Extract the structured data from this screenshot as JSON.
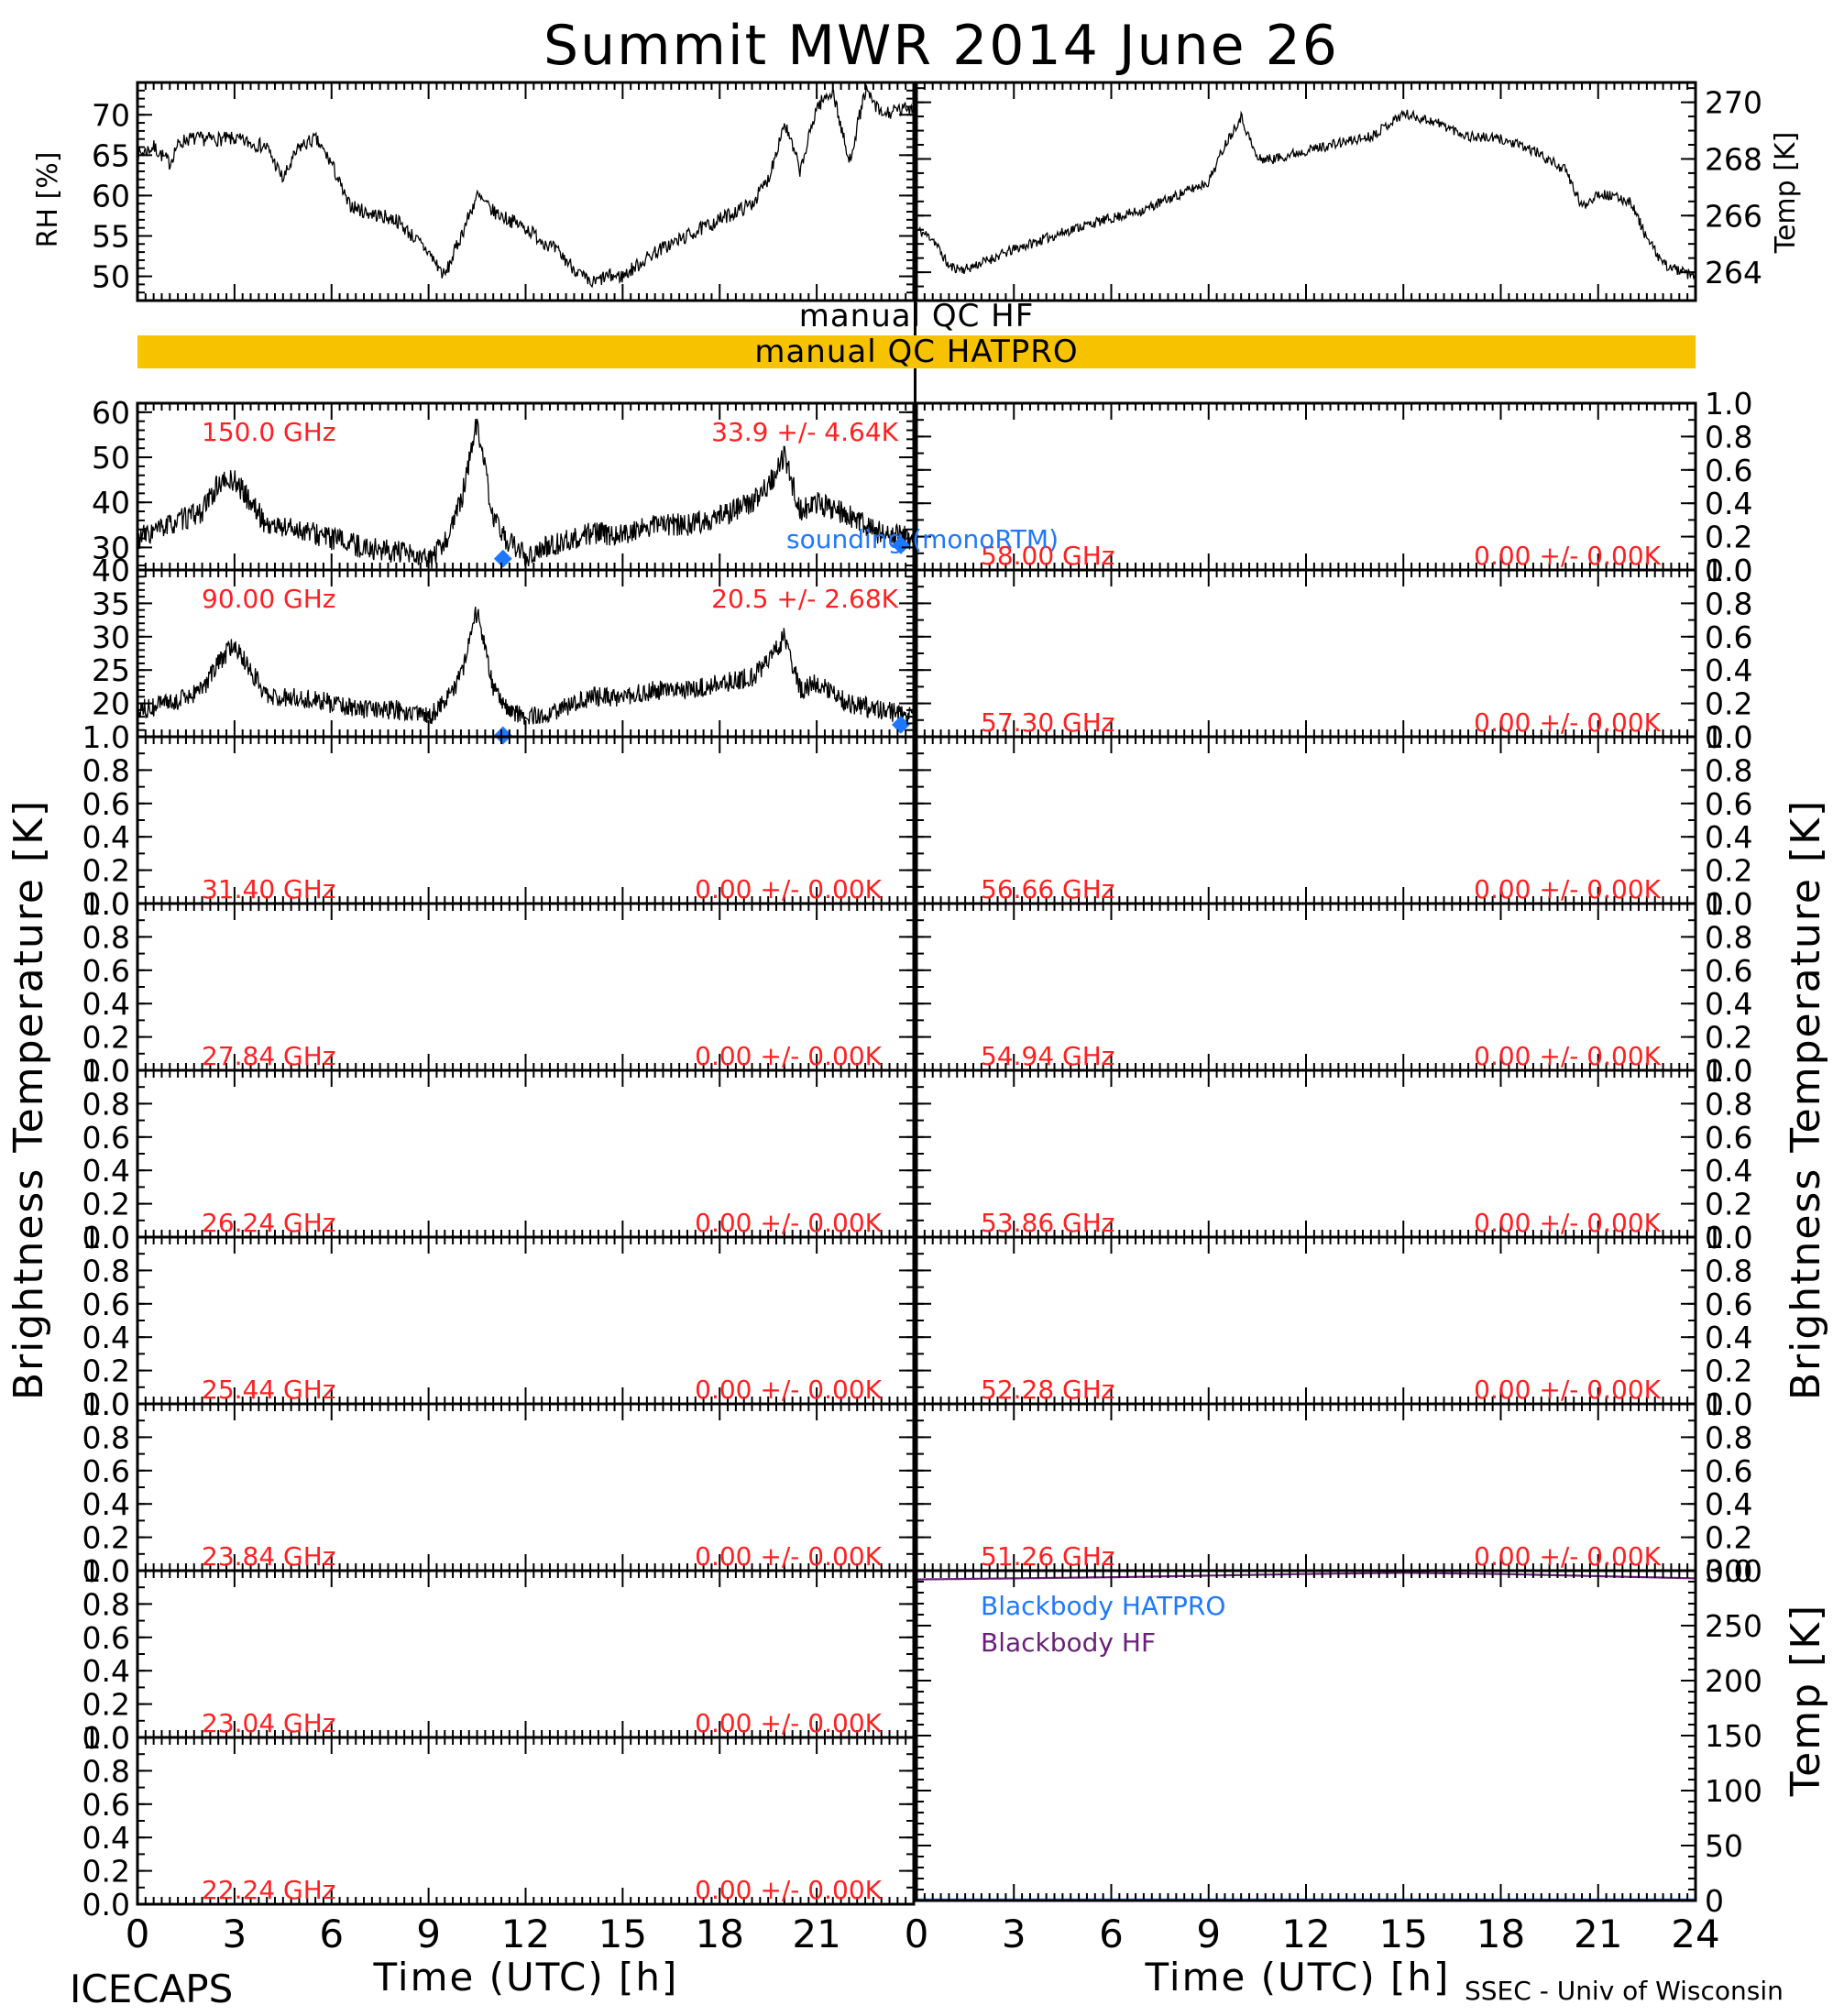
{
  "title": "Summit MWR 2014 June 26",
  "footer": {
    "left": "ICECAPS",
    "right": "SSEC - Univ of Wisconsin"
  },
  "axes_text": {
    "time_label": "Time (UTC) [h]",
    "left_tb_label": "Brightness Temperature [K]",
    "right_tb_label": "Brightness Temperature [K]",
    "rh_label": "RH [%]",
    "met_temp_label": "Temp [K]",
    "bb_temp_label": "Temp [K]"
  },
  "qc": {
    "hf_label": "manual QC HF",
    "hatpro_label": "manual QC HATPRO",
    "hatpro_flag_color": "#f7c300"
  },
  "colors": {
    "frame": "#000000",
    "label_red": "#ff2020",
    "sounding_blue": "#1e78ff",
    "bb_purple": "#6a1f7a"
  },
  "chart_data": [
    {
      "id": "rh",
      "type": "line",
      "ylabel": "RH [%]",
      "xlim": [
        0,
        24
      ],
      "ylim": [
        47,
        74
      ],
      "yticks": [
        50,
        55,
        60,
        65,
        70
      ],
      "x": [
        0,
        0.5,
        1,
        1.2,
        1.5,
        2,
        3,
        4,
        4.5,
        5,
        5.5,
        6,
        6.5,
        7,
        8,
        8.5,
        9,
        9.5,
        10,
        10.5,
        11,
        12,
        13,
        13.5,
        14,
        14.5,
        15,
        16,
        17,
        18,
        19,
        19.5,
        20,
        20.5,
        21,
        21.5,
        22,
        22.5,
        23,
        24
      ],
      "y": [
        65,
        66,
        64,
        66,
        67,
        67,
        67,
        66,
        62,
        66,
        67,
        64,
        59,
        58,
        57,
        55,
        53,
        50,
        55,
        60,
        58,
        56,
        53,
        51,
        49,
        50,
        50,
        53,
        55,
        57,
        59,
        62,
        69,
        63,
        71,
        73,
        64,
        73,
        70,
        71
      ]
    },
    {
      "id": "met_temp",
      "type": "line",
      "ylabel": "Temp [K]",
      "xlim": [
        0,
        24
      ],
      "ylim": [
        263.0,
        270.7
      ],
      "yticks": [
        264,
        266,
        268,
        270
      ],
      "x": [
        0,
        0.5,
        1,
        1.5,
        3,
        5,
        7,
        9,
        9.5,
        10,
        10.5,
        11,
        12,
        14,
        15,
        16,
        17,
        18,
        19,
        20,
        20.5,
        21,
        22,
        22.5,
        23,
        24
      ],
      "y": [
        265.5,
        265.2,
        264.2,
        264.1,
        264.8,
        265.6,
        266.2,
        267.2,
        268.5,
        269.5,
        268.0,
        268.0,
        268.3,
        268.8,
        269.6,
        269.3,
        268.8,
        268.7,
        268.3,
        267.6,
        266.3,
        266.8,
        266.5,
        265.2,
        264.3,
        263.8
      ]
    },
    {
      "id": "tb_150",
      "type": "line",
      "freq_label": "150.0 GHz",
      "stat_label": "33.9 +/- 4.64K",
      "ylim": [
        25,
        62
      ],
      "yticks": [
        30,
        40,
        50,
        60
      ],
      "x": [
        0,
        1,
        2,
        2.5,
        3,
        3.5,
        4,
        5,
        6,
        7,
        8,
        9,
        9.5,
        10,
        10.5,
        11,
        11.5,
        12,
        13,
        14,
        15,
        16,
        17,
        18,
        19,
        19.5,
        20,
        20.5,
        21,
        22,
        23,
        24
      ],
      "y": [
        32,
        35,
        38,
        44,
        45,
        40,
        35,
        34,
        32,
        30,
        29,
        27,
        31,
        40,
        58,
        36,
        31,
        28,
        31,
        33,
        33,
        35,
        35,
        37,
        40,
        44,
        50,
        38,
        40,
        37,
        33,
        32
      ],
      "sounding": {
        "label": "sounding (monoRTM)",
        "x": [
          11.3,
          23.6
        ],
        "y": [
          27.5,
          30.5
        ]
      }
    },
    {
      "id": "tb_90",
      "type": "line",
      "freq_label": "90.00 GHz",
      "stat_label": "20.5 +/- 2.68K",
      "ylim": [
        15,
        40
      ],
      "yticks": [
        20,
        25,
        30,
        35,
        40
      ],
      "x": [
        0,
        1,
        2,
        2.5,
        3,
        3.5,
        4,
        5,
        6,
        7,
        8,
        9,
        9.5,
        10,
        10.5,
        11,
        11.5,
        12,
        13,
        14,
        15,
        16,
        17,
        18,
        19,
        19.5,
        20,
        20.5,
        21,
        22,
        23,
        24
      ],
      "y": [
        19,
        20,
        22,
        26,
        29,
        25,
        21,
        21,
        20,
        19,
        19,
        18,
        20,
        24,
        34,
        22,
        19,
        18,
        19,
        21,
        21,
        22,
        22,
        23,
        24,
        26,
        30,
        22,
        23,
        20,
        19,
        18
      ],
      "sounding": {
        "x": [
          11.3,
          23.6
        ],
        "y": [
          15.2,
          16.8
        ]
      }
    },
    {
      "id": "tb_left_31.40",
      "type": "line",
      "freq_label": "31.40 GHz",
      "stat_label": "0.00 +/- 0.00K",
      "ylim": [
        0,
        1
      ],
      "x": [],
      "y": []
    },
    {
      "id": "tb_left_27.84",
      "type": "line",
      "freq_label": "27.84 GHz",
      "stat_label": "0.00 +/- 0.00K",
      "ylim": [
        0,
        1
      ],
      "x": [],
      "y": []
    },
    {
      "id": "tb_left_26.24",
      "type": "line",
      "freq_label": "26.24 GHz",
      "stat_label": "0.00 +/- 0.00K",
      "ylim": [
        0,
        1
      ],
      "x": [],
      "y": []
    },
    {
      "id": "tb_left_25.44",
      "type": "line",
      "freq_label": "25.44 GHz",
      "stat_label": "0.00 +/- 0.00K",
      "ylim": [
        0,
        1
      ],
      "x": [],
      "y": []
    },
    {
      "id": "tb_left_23.84",
      "type": "line",
      "freq_label": "23.84 GHz",
      "stat_label": "0.00 +/- 0.00K",
      "ylim": [
        0,
        1
      ],
      "x": [],
      "y": []
    },
    {
      "id": "tb_left_23.04",
      "type": "line",
      "freq_label": "23.04 GHz",
      "stat_label": "0.00 +/- 0.00K",
      "ylim": [
        0,
        1
      ],
      "x": [],
      "y": []
    },
    {
      "id": "tb_left_22.24",
      "type": "line",
      "freq_label": "22.24 GHz",
      "stat_label": "0.00 +/- 0.00K",
      "ylim": [
        0,
        1
      ],
      "x": [],
      "y": []
    },
    {
      "id": "tb_right_58.00",
      "type": "line",
      "freq_label": "58.00 GHz",
      "stat_label": "0.00 +/- 0.00K",
      "ylim": [
        0,
        1
      ],
      "x": [],
      "y": []
    },
    {
      "id": "tb_right_57.30",
      "type": "line",
      "freq_label": "57.30 GHz",
      "stat_label": "0.00 +/- 0.00K",
      "ylim": [
        0,
        1
      ],
      "x": [],
      "y": []
    },
    {
      "id": "tb_right_56.66",
      "type": "line",
      "freq_label": "56.66 GHz",
      "stat_label": "0.00 +/- 0.00K",
      "ylim": [
        0,
        1
      ],
      "x": [],
      "y": []
    },
    {
      "id": "tb_right_54.94",
      "type": "line",
      "freq_label": "54.94 GHz",
      "stat_label": "0.00 +/- 0.00K",
      "ylim": [
        0,
        1
      ],
      "x": [],
      "y": []
    },
    {
      "id": "tb_right_53.86",
      "type": "line",
      "freq_label": "53.86 GHz",
      "stat_label": "0.00 +/- 0.00K",
      "ylim": [
        0,
        1
      ],
      "x": [],
      "y": []
    },
    {
      "id": "tb_right_52.28",
      "type": "line",
      "freq_label": "52.28 GHz",
      "stat_label": "0.00 +/- 0.00K",
      "ylim": [
        0,
        1
      ],
      "x": [],
      "y": []
    },
    {
      "id": "tb_right_51.26",
      "type": "line",
      "freq_label": "51.26 GHz",
      "stat_label": "0.00 +/- 0.00K",
      "ylim": [
        0,
        1
      ],
      "x": [],
      "y": []
    },
    {
      "id": "blackbody",
      "type": "line",
      "ylabel": "Temp [K]",
      "ylim": [
        0,
        300
      ],
      "yticks": [
        0,
        50,
        100,
        150,
        200,
        250,
        300
      ],
      "series": [
        {
          "name": "Blackbody HATPRO",
          "color": "#1e78ff",
          "x": [
            0,
            24
          ],
          "y": [
            1,
            1
          ]
        },
        {
          "name": "Blackbody HF",
          "color": "#6a1f7a",
          "x": [
            0,
            6,
            12,
            15,
            18,
            24
          ],
          "y": [
            292,
            294,
            297,
            298,
            297,
            293
          ]
        }
      ]
    }
  ],
  "tb_ticks": [
    "0.0",
    "0.2",
    "0.4",
    "0.6",
    "0.8",
    "1.0"
  ],
  "time_ticks": [
    "0",
    "3",
    "6",
    "9",
    "12",
    "15",
    "18",
    "21",
    "24"
  ]
}
